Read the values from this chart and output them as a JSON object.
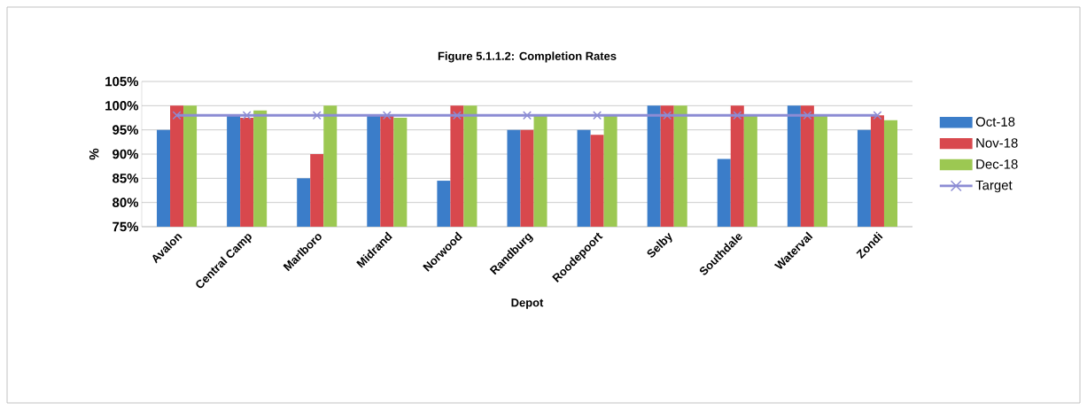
{
  "chart_data": {
    "type": "bar",
    "title": "Figure 5.1.1.2: Completion Rates",
    "xlabel": "Depot",
    "ylabel": "%",
    "categories": [
      "Avalon",
      "Central Camp",
      "Marlboro",
      "Midrand",
      "Norwood",
      "Randburg",
      "Roodepoort",
      "Selby",
      "Southdale",
      "Waterval",
      "Zondi"
    ],
    "series": [
      {
        "name": "Oct-18",
        "color": "#3b7dc9",
        "values": [
          95,
          98,
          85,
          98,
          84.5,
          95,
          95,
          100,
          89,
          100,
          95
        ]
      },
      {
        "name": "Nov-18",
        "color": "#d8484d",
        "values": [
          100,
          97.5,
          90,
          98,
          100,
          95,
          94,
          100,
          100,
          100,
          98
        ]
      },
      {
        "name": "Dec-18",
        "color": "#9cc852",
        "values": [
          100,
          99,
          100,
          97.5,
          100,
          98,
          98,
          100,
          98,
          98,
          97
        ]
      },
      {
        "name": "Target",
        "type": "line",
        "color": "#8c8cd4",
        "marker": "cross",
        "values": [
          98,
          98,
          98,
          98,
          98,
          98,
          98,
          98,
          98,
          98,
          98
        ]
      }
    ],
    "ylim": [
      75,
      105
    ],
    "yticks": [
      {
        "value": 75,
        "label": "75%"
      },
      {
        "value": 80,
        "label": "80%"
      },
      {
        "value": 85,
        "label": "85%"
      },
      {
        "value": 90,
        "label": "90%"
      },
      {
        "value": 95,
        "label": "95%"
      },
      {
        "value": 100,
        "label": "100%"
      },
      {
        "value": 105,
        "label": "105%"
      }
    ],
    "grid": "y",
    "legend": "right"
  }
}
